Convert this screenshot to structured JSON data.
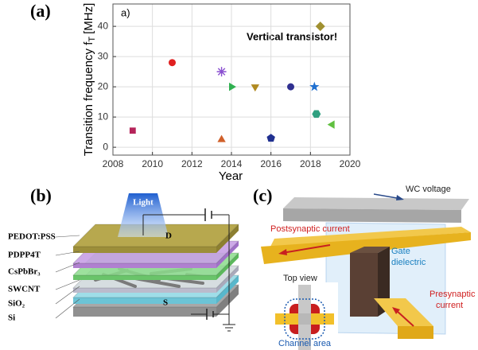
{
  "chart_data": {
    "type": "scatter",
    "panel_label": "(a)",
    "inset_label": "a)",
    "annotation": "Vertical transistor!",
    "xlabel": "Year",
    "ylabel": "Transition frequency f",
    "ylabel_sub": "T",
    "ylabel_unit": "[MHz]",
    "x": [
      2009,
      2011,
      2013.5,
      2013.5,
      2014,
      2015.2,
      2016,
      2017,
      2018.2,
      2018.3,
      2018.5,
      2019.1
    ],
    "values": [
      5.5,
      28,
      25,
      2.5,
      20,
      20,
      3,
      20,
      20,
      11,
      40,
      7.5
    ],
    "markers": [
      "square",
      "circle",
      "asterisk",
      "triangle-up",
      "triangle-right",
      "triangle-down",
      "pentagon",
      "circle",
      "star",
      "hexagon",
      "diamond",
      "triangle-left"
    ],
    "colors": [
      "#b5245a",
      "#e02020",
      "#8a4fd0",
      "#d0602a",
      "#30b050",
      "#b08a20",
      "#203090",
      "#303090",
      "#2070d0",
      "#30a080",
      "#a09030",
      "#60c040"
    ],
    "xlim": [
      2008,
      2020
    ],
    "xticks": [
      2008,
      2010,
      2012,
      2014,
      2016,
      2018,
      2020
    ],
    "ylim": [
      -2.6,
      47.4
    ],
    "yticks": [
      0,
      10,
      20,
      30,
      40
    ],
    "grid": true
  },
  "panel_b": {
    "label": "(b)",
    "light": "Light",
    "layers": [
      "PEDOT:PSS",
      "PDPP4T",
      "CsPbBr₃",
      "SWCNT",
      "SiO₂",
      "Si"
    ],
    "drain": "D",
    "source": "S"
  },
  "panel_c": {
    "label": "(c)",
    "wc_voltage": "WC voltage",
    "postsynaptic": "Postsynaptic current",
    "gate_line1": "Gate",
    "gate_line2": "dielectric",
    "top_view": "Top view",
    "pre_line1": "Presynaptic",
    "pre_line2": "current",
    "channel": "Channel area"
  }
}
